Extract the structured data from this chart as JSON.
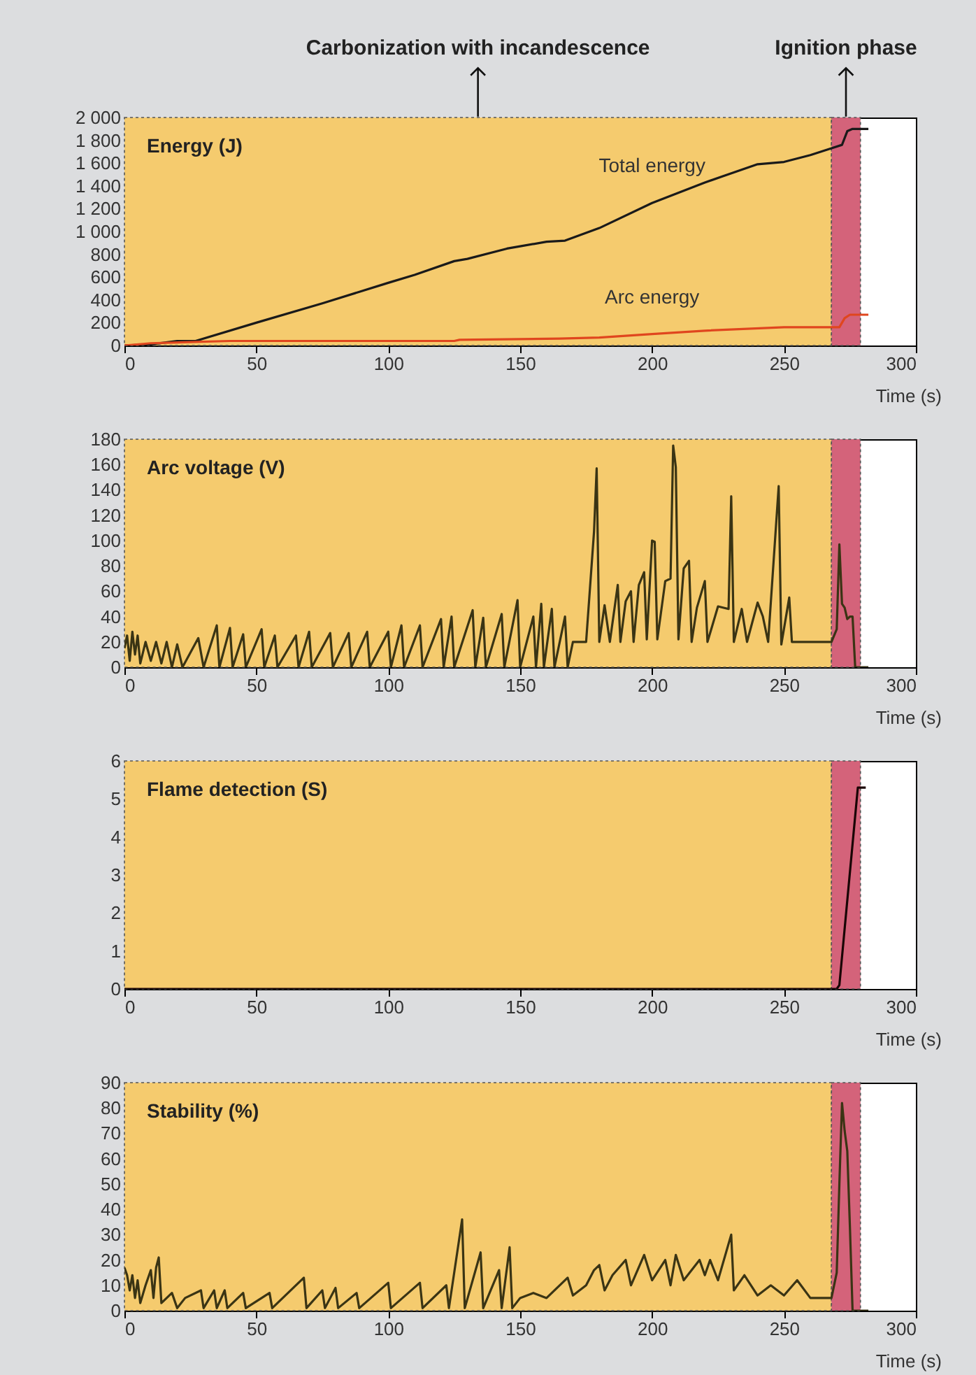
{
  "chart_data": [
    {
      "type": "line",
      "ylabel": "Energy (J)",
      "xlabel": "Time (s)",
      "xlim": [
        0,
        300
      ],
      "xticks": [
        0,
        50,
        100,
        150,
        200,
        250,
        300
      ],
      "ylim": [
        0,
        2000
      ],
      "yticks": [
        0,
        200,
        400,
        600,
        800,
        {
          "value": 1000,
          "label": "1 000"
        },
        {
          "value": 1200,
          "label": "1 200"
        },
        {
          "value": 1400,
          "label": "1 400"
        },
        {
          "value": 1600,
          "label": "1 600"
        },
        {
          "value": 1800,
          "label": "1 800"
        },
        {
          "value": 2000,
          "label": "2 000"
        }
      ],
      "bands": [
        {
          "axis": "x",
          "from": 0,
          "to": 268,
          "label": "Carbonization with incandescence",
          "color": "#f5cb6e"
        },
        {
          "axis": "x",
          "from": 268,
          "to": 279,
          "label": "Ignition phase",
          "color": "#d4637a"
        }
      ],
      "series": [
        {
          "name": "Total energy",
          "color": "#1a1a1a",
          "x": [
            0,
            10,
            20,
            27,
            50,
            75,
            100,
            110,
            125,
            130,
            145,
            150,
            160,
            167,
            180,
            200,
            220,
            240,
            250,
            260,
            268,
            272,
            274,
            276,
            282
          ],
          "values": [
            0,
            10,
            40,
            40,
            200,
            370,
            550,
            620,
            740,
            760,
            850,
            870,
            910,
            920,
            1030,
            1250,
            1430,
            1590,
            1610,
            1670,
            1730,
            1760,
            1880,
            1900,
            1900
          ]
        },
        {
          "name": "Arc energy",
          "color": "#e0461e",
          "x": [
            0,
            10,
            40,
            125,
            127,
            165,
            180,
            200,
            220,
            250,
            268,
            271,
            273,
            275,
            282
          ],
          "values": [
            0,
            20,
            40,
            40,
            50,
            60,
            70,
            100,
            130,
            160,
            160,
            160,
            240,
            270,
            270
          ]
        }
      ]
    },
    {
      "type": "line",
      "ylabel": "Arc voltage (V)",
      "xlabel": "Time (s)",
      "xlim": [
        0,
        300
      ],
      "xticks": [
        0,
        50,
        100,
        150,
        200,
        250,
        300
      ],
      "ylim": [
        0,
        180
      ],
      "yticks": [
        0,
        20,
        40,
        60,
        80,
        100,
        120,
        140,
        160,
        180
      ],
      "bands": [
        {
          "axis": "x",
          "from": 0,
          "to": 268,
          "color": "#f5cb6e"
        },
        {
          "axis": "x",
          "from": 268,
          "to": 279,
          "color": "#d4637a"
        }
      ],
      "series": [
        {
          "color": "#3a3414",
          "x": [
            0,
            1,
            2,
            3,
            4,
            5,
            6,
            8,
            10,
            12,
            14,
            16,
            18,
            20,
            22,
            28,
            30,
            35,
            36,
            40,
            41,
            45,
            46,
            52,
            53,
            57,
            58,
            65,
            66,
            70,
            71,
            78,
            79,
            85,
            86,
            92,
            93,
            100,
            101,
            105,
            106,
            112,
            113,
            120,
            121,
            124,
            125,
            132,
            133,
            136,
            137,
            143,
            144,
            149,
            150,
            155,
            156,
            158,
            159,
            162,
            163,
            167,
            168,
            170,
            175,
            178,
            179,
            180,
            182,
            184,
            187,
            188,
            190,
            192,
            193,
            195,
            197,
            198,
            200,
            201,
            202,
            205,
            207,
            208,
            209,
            210,
            212,
            214,
            215,
            217,
            220,
            221,
            225,
            229,
            230,
            231,
            234,
            236,
            240,
            242,
            244,
            248,
            249,
            252,
            253,
            258,
            262,
            265,
            268,
            270,
            271,
            272,
            273,
            274,
            275,
            276,
            277,
            280,
            282
          ],
          "values": [
            15,
            25,
            5,
            28,
            10,
            25,
            3,
            20,
            5,
            20,
            3,
            20,
            0,
            18,
            0,
            23,
            0,
            33,
            0,
            31,
            0,
            26,
            0,
            30,
            0,
            25,
            0,
            25,
            0,
            28,
            0,
            27,
            0,
            27,
            0,
            28,
            0,
            28,
            0,
            33,
            0,
            33,
            0,
            38,
            0,
            40,
            0,
            45,
            0,
            39,
            0,
            42,
            0,
            53,
            0,
            40,
            0,
            50,
            0,
            46,
            0,
            40,
            0,
            20,
            20,
            107,
            157,
            20,
            49,
            20,
            65,
            20,
            52,
            60,
            20,
            65,
            75,
            22,
            100,
            99,
            22,
            68,
            70,
            175,
            158,
            22,
            78,
            84,
            20,
            47,
            68,
            20,
            48,
            46,
            135,
            20,
            46,
            20,
            51,
            40,
            20,
            143,
            18,
            55,
            20,
            20,
            20,
            20,
            20,
            30,
            97,
            50,
            47,
            38,
            40,
            40,
            0,
            0,
            0
          ]
        }
      ]
    },
    {
      "type": "line",
      "ylabel": "Flame detection (S)",
      "xlabel": "Time (s)",
      "xlim": [
        0,
        300
      ],
      "xticks": [
        0,
        50,
        100,
        150,
        200,
        250,
        300
      ],
      "ylim": [
        0,
        6
      ],
      "yticks": [
        0,
        1,
        2,
        3,
        4,
        5,
        6
      ],
      "bands": [
        {
          "axis": "x",
          "from": 0,
          "to": 268,
          "color": "#f5cb6e"
        },
        {
          "axis": "x",
          "from": 268,
          "to": 279,
          "color": "#d4637a"
        }
      ],
      "series": [
        {
          "color": "#1a0505",
          "x": [
            0,
            270,
            271,
            278,
            281
          ],
          "values": [
            0,
            0,
            0.1,
            5.3,
            5.3
          ]
        }
      ]
    },
    {
      "type": "line",
      "ylabel": "Stability (%)",
      "xlabel": "Time (s)",
      "xlim": [
        0,
        300
      ],
      "xticks": [
        0,
        50,
        100,
        150,
        200,
        250,
        300
      ],
      "ylim": [
        0,
        90
      ],
      "yticks": [
        0,
        10,
        20,
        30,
        40,
        50,
        60,
        70,
        80,
        90
      ],
      "bands": [
        {
          "axis": "x",
          "from": 0,
          "to": 268,
          "color": "#f5cb6e"
        },
        {
          "axis": "x",
          "from": 268,
          "to": 279,
          "color": "#d4637a"
        }
      ],
      "series": [
        {
          "color": "#3a3414",
          "x": [
            0,
            1,
            2,
            3,
            4,
            5,
            6,
            8,
            10,
            11,
            12,
            13,
            14,
            16,
            18,
            20,
            23,
            29,
            30,
            34,
            35,
            38,
            39,
            45,
            46,
            55,
            56,
            68,
            69,
            75,
            76,
            80,
            81,
            88,
            89,
            100,
            101,
            112,
            113,
            122,
            123,
            128,
            129,
            135,
            136,
            142,
            143,
            146,
            147,
            150,
            155,
            160,
            168,
            170,
            175,
            178,
            180,
            182,
            185,
            190,
            192,
            197,
            200,
            205,
            207,
            209,
            212,
            218,
            220,
            222,
            225,
            230,
            231,
            235,
            240,
            245,
            250,
            255,
            260,
            265,
            268,
            270,
            271,
            272,
            273,
            274,
            275,
            276,
            280,
            282
          ],
          "values": [
            17,
            14,
            8,
            14,
            5,
            12,
            3,
            10,
            16,
            5,
            17,
            21,
            3,
            5,
            7,
            1,
            5,
            8,
            1,
            8,
            1,
            8,
            1,
            7,
            1,
            7,
            1,
            13,
            1,
            8,
            1,
            9,
            1,
            7,
            1,
            11,
            1,
            11,
            1,
            10,
            1,
            36,
            1,
            23,
            1,
            16,
            1,
            25,
            1,
            5,
            7,
            5,
            13,
            6,
            10,
            16,
            18,
            8,
            14,
            20,
            10,
            22,
            12,
            20,
            10,
            22,
            12,
            20,
            14,
            20,
            12,
            30,
            8,
            14,
            6,
            10,
            6,
            12,
            5,
            5,
            5,
            15,
            50,
            82,
            71,
            63,
            33,
            0,
            0,
            0
          ]
        }
      ]
    }
  ]
}
